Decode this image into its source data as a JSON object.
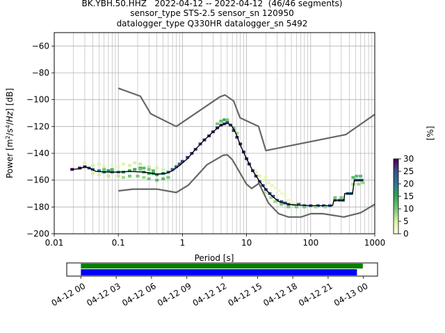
{
  "title_lines": [
    "BK.YBH.50.HHZ   2022-04-12 -- 2022-04-12  (46/46 segments)",
    "sensor_type STS-2.5 sensor_sn 120950",
    "datalogger_type Q330HR datalogger_sn 5492"
  ],
  "chart_data": [
    {
      "type": "heatmap",
      "title": "BK.YBH.50.HHZ   2022-04-12 -- 2022-04-12  (46/46 segments)",
      "xlabel": "Period [s]",
      "ylabel": "Power [m²/s⁴/Hz] [dB]",
      "xscale": "log",
      "xlim": [
        0.01,
        1000
      ],
      "ylim": [
        -200,
        -50
      ],
      "x_ticks": [
        0.01,
        0.1,
        1,
        10,
        100,
        1000
      ],
      "x_tick_labels": [
        "0.01",
        "0.1",
        "1",
        "10",
        "100",
        "1000"
      ],
      "y_ticks": [
        -200,
        -180,
        -160,
        -140,
        -120,
        -100,
        -80,
        -60
      ],
      "y_tick_labels": [
        "−200",
        "−180",
        "−160",
        "−140",
        "−120",
        "−100",
        "−80",
        "−60"
      ],
      "grid": true,
      "colorbar": {
        "label": "[%]",
        "range": [
          0,
          30
        ],
        "ticks": [
          0,
          5,
          10,
          15,
          20,
          25,
          30
        ],
        "tick_labels": [
          "0",
          "5",
          "10",
          "15",
          "20",
          "25",
          "30"
        ],
        "colormap": [
          "#ffffe0",
          "#d9f0a3",
          "#78c679",
          "#31a354",
          "#2a788e",
          "#3b528b",
          "#440154"
        ]
      },
      "series": [
        {
          "style": "reference-high",
          "color": "#666666",
          "points": [
            [
              0.1,
              -91.5
            ],
            [
              0.22,
              -97.4
            ],
            [
              0.32,
              -110.5
            ],
            [
              0.8,
              -120
            ],
            [
              3.8,
              -98
            ],
            [
              4.6,
              -96.5
            ],
            [
              6.3,
              -101
            ],
            [
              7.9,
              -113.5
            ],
            [
              15.4,
              -120
            ],
            [
              20,
              -138
            ],
            [
              354.8,
              -126
            ],
            [
              1000,
              -111
            ]
          ]
        },
        {
          "style": "reference-low",
          "color": "#666666",
          "points": [
            [
              0.1,
              -168
            ],
            [
              0.17,
              -166.7
            ],
            [
              0.4,
              -166.7
            ],
            [
              0.8,
              -169.2
            ],
            [
              1.24,
              -163.7
            ],
            [
              2.4,
              -148.6
            ],
            [
              4.3,
              -141.5
            ],
            [
              5.0,
              -141.1
            ],
            [
              6.0,
              -144.7
            ],
            [
              10.0,
              -163
            ],
            [
              12.0,
              -166.2
            ],
            [
              15.6,
              -162.4
            ],
            [
              21.9,
              -177
            ],
            [
              31.6,
              -185
            ],
            [
              45,
              -187.5
            ],
            [
              70.8,
              -187.5
            ],
            [
              101,
              -185
            ],
            [
              154.9,
              -185
            ],
            [
              328.8,
              -187.5
            ],
            [
              600,
              -184.4
            ],
            [
              1000,
              -178
            ]
          ]
        },
        {
          "style": "mode",
          "color": "#000000",
          "points": [
            [
              0.019,
              -152
            ],
            [
              0.025,
              -151.5
            ],
            [
              0.03,
              -150
            ],
            [
              0.035,
              -151
            ],
            [
              0.045,
              -153.5
            ],
            [
              0.07,
              -154
            ],
            [
              0.1,
              -154
            ],
            [
              0.15,
              -153.5
            ],
            [
              0.25,
              -154
            ],
            [
              0.4,
              -155.5
            ],
            [
              0.55,
              -155
            ],
            [
              0.7,
              -153
            ],
            [
              0.9,
              -149
            ],
            [
              1.2,
              -144
            ],
            [
              1.6,
              -137
            ],
            [
              2.2,
              -130
            ],
            [
              3.0,
              -124
            ],
            [
              4.0,
              -119
            ],
            [
              5.0,
              -117.5
            ],
            [
              5.8,
              -119
            ],
            [
              6.8,
              -125
            ],
            [
              8.0,
              -134
            ],
            [
              10,
              -144
            ],
            [
              12.5,
              -153
            ],
            [
              16,
              -161
            ],
            [
              20,
              -167
            ],
            [
              25,
              -172
            ],
            [
              32,
              -176
            ],
            [
              45,
              -178
            ],
            [
              60,
              -178.5
            ],
            [
              90,
              -179
            ],
            [
              150,
              -179
            ],
            [
              220,
              -179
            ],
            [
              230,
              -175
            ],
            [
              300,
              -175
            ],
            [
              330,
              -175
            ],
            [
              340,
              -170
            ],
            [
              450,
              -170
            ],
            [
              480,
              -160
            ],
            [
              650,
              -160
            ]
          ]
        }
      ],
      "density": [
        [
          0.019,
          -152,
          30
        ],
        [
          0.025,
          -151,
          30
        ],
        [
          0.03,
          -150,
          28
        ],
        [
          0.035,
          -151,
          25
        ],
        [
          0.04,
          -152,
          22
        ],
        [
          0.05,
          -153,
          20
        ],
        [
          0.06,
          -154,
          18
        ],
        [
          0.07,
          -153,
          18
        ],
        [
          0.08,
          -154,
          18
        ],
        [
          0.1,
          -154,
          16
        ],
        [
          0.12,
          -154,
          16
        ],
        [
          0.15,
          -153,
          15
        ],
        [
          0.18,
          -152,
          14
        ],
        [
          0.22,
          -151,
          14
        ],
        [
          0.25,
          -154,
          14
        ],
        [
          0.3,
          -155,
          14
        ],
        [
          0.35,
          -155,
          15
        ],
        [
          0.4,
          -156,
          16
        ],
        [
          0.5,
          -155,
          18
        ],
        [
          0.6,
          -154,
          20
        ],
        [
          0.7,
          -152,
          22
        ],
        [
          0.8,
          -150,
          24
        ],
        [
          0.9,
          -148,
          25
        ],
        [
          1.0,
          -146,
          26
        ],
        [
          1.2,
          -143,
          26
        ],
        [
          1.4,
          -140,
          27
        ],
        [
          1.6,
          -137,
          27
        ],
        [
          1.9,
          -133,
          27
        ],
        [
          2.2,
          -130,
          28
        ],
        [
          2.6,
          -127,
          28
        ],
        [
          3.0,
          -124,
          28
        ],
        [
          3.5,
          -121,
          28
        ],
        [
          4.0,
          -119,
          27
        ],
        [
          4.5,
          -118,
          26
        ],
        [
          5.0,
          -117,
          26
        ],
        [
          5.6,
          -119,
          26
        ],
        [
          6.3,
          -123,
          27
        ],
        [
          7.1,
          -128,
          27
        ],
        [
          8.0,
          -133,
          28
        ],
        [
          9.0,
          -139,
          28
        ],
        [
          10,
          -144,
          28
        ],
        [
          11,
          -148,
          28
        ],
        [
          12.5,
          -153,
          27
        ],
        [
          14,
          -157,
          26
        ],
        [
          16,
          -161,
          26
        ],
        [
          18,
          -164,
          26
        ],
        [
          20,
          -167,
          25
        ],
        [
          23,
          -170,
          25
        ],
        [
          26,
          -172,
          25
        ],
        [
          30,
          -175,
          25
        ],
        [
          35,
          -176,
          25
        ],
        [
          40,
          -177,
          24
        ],
        [
          45,
          -178,
          24
        ],
        [
          55,
          -178,
          24
        ],
        [
          65,
          -178,
          24
        ],
        [
          80,
          -179,
          24
        ],
        [
          100,
          -179,
          24
        ],
        [
          130,
          -179,
          24
        ],
        [
          160,
          -179,
          25
        ],
        [
          200,
          -179,
          25
        ],
        [
          240,
          -175,
          24
        ],
        [
          280,
          -175,
          24
        ],
        [
          320,
          -175,
          24
        ],
        [
          380,
          -170,
          22
        ],
        [
          430,
          -170,
          22
        ],
        [
          500,
          -160,
          20
        ],
        [
          560,
          -160,
          20
        ],
        [
          630,
          -160,
          20
        ],
        [
          0.03,
          -147,
          4
        ],
        [
          0.04,
          -149,
          5
        ],
        [
          0.05,
          -148,
          4
        ],
        [
          0.06,
          -150,
          4
        ],
        [
          0.08,
          -149,
          3
        ],
        [
          0.1,
          -150,
          3
        ],
        [
          0.12,
          -148,
          4
        ],
        [
          0.15,
          -149,
          5
        ],
        [
          0.18,
          -147,
          5
        ],
        [
          0.22,
          -148,
          6
        ],
        [
          0.3,
          -150,
          6
        ],
        [
          0.4,
          -151,
          5
        ],
        [
          0.5,
          -152,
          5
        ],
        [
          0.6,
          -158,
          10
        ],
        [
          0.5,
          -159,
          12
        ],
        [
          0.4,
          -160,
          12
        ],
        [
          0.3,
          -159,
          10
        ],
        [
          0.25,
          -158,
          8
        ],
        [
          0.2,
          -157,
          10
        ],
        [
          0.15,
          -157,
          10
        ],
        [
          0.12,
          -158,
          8
        ],
        [
          0.1,
          -157,
          6
        ],
        [
          0.07,
          -157,
          6
        ],
        [
          0.05,
          -156,
          5
        ],
        [
          0.04,
          -155,
          5
        ],
        [
          0.22,
          -152,
          10
        ],
        [
          0.25,
          -151,
          12
        ],
        [
          0.3,
          -152,
          10
        ],
        [
          0.35,
          -153,
          12
        ],
        [
          0.06,
          -152,
          10
        ],
        [
          0.08,
          -152,
          12
        ],
        [
          4.0,
          -116,
          12
        ],
        [
          4.5,
          -115,
          14
        ],
        [
          5.0,
          -115,
          10
        ],
        [
          3.5,
          -118,
          10
        ],
        [
          6.3,
          -121,
          10
        ],
        [
          7.1,
          -125,
          8
        ],
        [
          14,
          -154,
          4
        ],
        [
          16,
          -157,
          4
        ],
        [
          18,
          -160,
          3
        ],
        [
          20,
          -158,
          3
        ],
        [
          22,
          -162,
          3
        ],
        [
          25,
          -164,
          3
        ],
        [
          28,
          -166,
          2
        ],
        [
          32,
          -168,
          2
        ],
        [
          36,
          -170,
          2
        ],
        [
          40,
          -172,
          2
        ],
        [
          45,
          -175,
          2
        ],
        [
          50,
          -176,
          2
        ],
        [
          55,
          -177,
          2
        ],
        [
          20,
          -169,
          6
        ],
        [
          24,
          -173,
          8
        ],
        [
          28,
          -176,
          8
        ],
        [
          35,
          -178,
          10
        ],
        [
          45,
          -180,
          10
        ],
        [
          60,
          -180,
          10
        ],
        [
          80,
          -180,
          10
        ],
        [
          120,
          -180,
          8
        ],
        [
          170,
          -180,
          8
        ],
        [
          460,
          -158,
          12
        ],
        [
          520,
          -157,
          12
        ],
        [
          600,
          -157,
          12
        ],
        [
          460,
          -163,
          8
        ],
        [
          560,
          -163,
          8
        ],
        [
          650,
          -162,
          8
        ],
        [
          240,
          -173,
          10
        ],
        [
          300,
          -173,
          10
        ]
      ]
    },
    {
      "type": "timeline",
      "x_tick_labels": [
        "04-12 00",
        "04-12 03",
        "04-12 06",
        "04-12 09",
        "04-12 12",
        "04-12 15",
        "04-12 18",
        "04-12 21",
        "04-13 00"
      ],
      "x_ticks_hours": [
        0,
        3,
        6,
        9,
        12,
        15,
        18,
        21,
        24
      ],
      "xlim_hours": [
        -1.2,
        25.2
      ],
      "bars": [
        {
          "name": "data",
          "color": "#008000",
          "start_hours": 0,
          "end_hours": 23.95
        },
        {
          "name": "psd",
          "color": "#0000ff",
          "start_hours": 0,
          "end_hours": 23.45
        }
      ]
    }
  ]
}
